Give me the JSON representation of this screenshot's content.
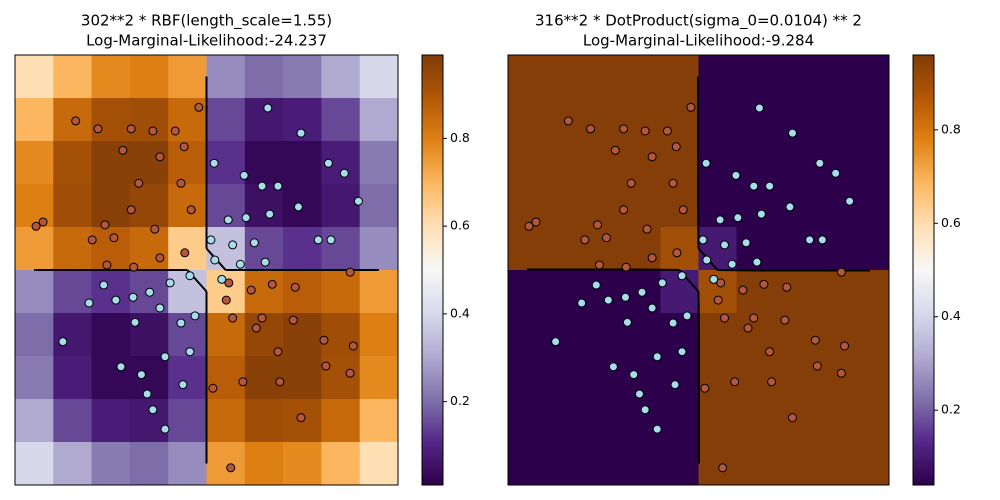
{
  "chart_data": [
    {
      "type": "heatmap",
      "title": "302**2 * RBF(length_scale=1.55)",
      "subtitle": "Log-Marginal-Likelihood:-24.237",
      "xlim": [
        -3,
        3
      ],
      "ylim": [
        -3,
        3
      ],
      "z": [
        [
          0.6,
          0.7,
          0.78,
          0.8,
          0.75,
          0.25,
          0.2,
          0.22,
          0.3,
          0.4
        ],
        [
          0.7,
          0.85,
          0.92,
          0.93,
          0.85,
          0.15,
          0.07,
          0.08,
          0.15,
          0.3
        ],
        [
          0.78,
          0.92,
          0.97,
          0.97,
          0.88,
          0.12,
          0.03,
          0.03,
          0.08,
          0.22
        ],
        [
          0.8,
          0.93,
          0.97,
          0.95,
          0.85,
          0.15,
          0.05,
          0.03,
          0.07,
          0.2
        ],
        [
          0.75,
          0.85,
          0.88,
          0.85,
          0.65,
          0.35,
          0.15,
          0.12,
          0.15,
          0.25
        ],
        [
          0.25,
          0.15,
          0.12,
          0.15,
          0.35,
          0.65,
          0.85,
          0.88,
          0.85,
          0.75
        ],
        [
          0.2,
          0.07,
          0.03,
          0.05,
          0.15,
          0.85,
          0.95,
          0.97,
          0.93,
          0.8
        ],
        [
          0.22,
          0.08,
          0.03,
          0.03,
          0.12,
          0.88,
          0.97,
          0.97,
          0.92,
          0.78
        ],
        [
          0.3,
          0.15,
          0.08,
          0.07,
          0.15,
          0.85,
          0.93,
          0.92,
          0.85,
          0.7
        ],
        [
          0.4,
          0.3,
          0.22,
          0.2,
          0.25,
          0.75,
          0.8,
          0.78,
          0.7,
          0.6
        ]
      ],
      "colormap": [
        "#2d004b",
        "#542788",
        "#8073ac",
        "#b2abd2",
        "#d8daeb",
        "#f7f7f7",
        "#fee0b6",
        "#fdb863",
        "#e08214",
        "#b35806",
        "#7f3b08"
      ],
      "clim": [
        0.01,
        0.99
      ],
      "colorbar_ticks": [
        0.2,
        0.4,
        0.6,
        0.8
      ],
      "contour_level": 0.5,
      "series": [
        {
          "color": "#b5573a",
          "x": [
            -2.05,
            -1.7,
            -1.18,
            -0.84,
            -0.49,
            -1.31,
            -0.73,
            -0.35,
            -0.12,
            -1.06,
            -0.4,
            -1.18,
            -1.59,
            -2.67,
            -2.56,
            -1.79,
            -0.81,
            -0.24,
            -1.56,
            -1.14,
            -0.73,
            -0.34,
            -1.45,
            0.35,
            0.7,
            1.03,
            1.39,
            2.25,
            0.41,
            0.87,
            1.36,
            1.84,
            2.3,
            1.12,
            0.57,
            1.15,
            1.87,
            2.25,
            1.48,
            0.38,
            0.1,
            0.31,
            0.78
          ],
          "y": [
            2.08,
            1.97,
            1.97,
            1.94,
            1.94,
            1.67,
            1.58,
            1.72,
            2.27,
            1.21,
            1.21,
            0.84,
            0.63,
            0.61,
            0.67,
            0.42,
            0.57,
            0.84,
            0.07,
            0.04,
            0.17,
            0.24,
            0.45,
            -0.18,
            -0.28,
            -0.2,
            -0.24,
            -0.03,
            -0.67,
            -0.67,
            -0.7,
            -0.98,
            -1.06,
            -1.14,
            -1.56,
            -1.56,
            -1.34,
            -1.44,
            -2.06,
            -2.76,
            -1.65,
            -0.42,
            -0.81
          ]
        },
        {
          "color": "#a6dceb",
          "x": [
            0.96,
            1.48,
            1.91,
            2.16,
            2.38,
            0.12,
            0.59,
            0.87,
            1.12,
            1.44,
            0.34,
            0.62,
            0.99,
            1.75,
            1.95,
            0.07,
            0.41,
            0.75,
            0.92,
            0.53,
            0.13,
            0.24,
            -1.61,
            -1.84,
            -2.25,
            -1.42,
            -1.15,
            -0.89,
            -0.57,
            -0.26,
            -0.73,
            -0.4,
            -1.12,
            -1.34,
            -1.02,
            -0.65,
            -0.26,
            -0.37,
            -0.93,
            -0.84,
            -0.65,
            -0.18
          ],
          "y": [
            2.26,
            1.91,
            1.49,
            1.35,
            0.96,
            1.49,
            1.32,
            1.17,
            1.17,
            0.88,
            0.7,
            0.73,
            0.78,
            0.42,
            0.42,
            0.42,
            0.35,
            0.38,
            0.11,
            0.08,
            0.14,
            -0.13,
            -0.21,
            -0.46,
            -1.0,
            -0.42,
            -0.38,
            -0.31,
            -0.18,
            -0.08,
            -0.53,
            -0.74,
            -0.73,
            -1.35,
            -1.46,
            -1.21,
            -1.14,
            -1.6,
            -1.73,
            -1.95,
            -2.22,
            -0.64
          ]
        }
      ]
    },
    {
      "type": "heatmap",
      "title": "316**2 * DotProduct(sigma_0=0.0104) ** 2",
      "subtitle": "Log-Marginal-Likelihood:-9.284",
      "xlim": [
        -3,
        3
      ],
      "ylim": [
        -3,
        3
      ],
      "z": [
        [
          0.95,
          0.95,
          0.95,
          0.95,
          0.95,
          0.03,
          0.03,
          0.03,
          0.03,
          0.03
        ],
        [
          0.95,
          0.95,
          0.95,
          0.95,
          0.95,
          0.03,
          0.03,
          0.03,
          0.03,
          0.03
        ],
        [
          0.95,
          0.95,
          0.95,
          0.95,
          0.95,
          0.03,
          0.03,
          0.03,
          0.03,
          0.03
        ],
        [
          0.95,
          0.95,
          0.95,
          0.95,
          0.95,
          0.03,
          0.03,
          0.03,
          0.03,
          0.03
        ],
        [
          0.95,
          0.95,
          0.95,
          0.95,
          0.9,
          0.1,
          0.03,
          0.03,
          0.03,
          0.03
        ],
        [
          0.03,
          0.03,
          0.03,
          0.03,
          0.1,
          0.9,
          0.95,
          0.95,
          0.95,
          0.95
        ],
        [
          0.03,
          0.03,
          0.03,
          0.03,
          0.03,
          0.95,
          0.95,
          0.95,
          0.95,
          0.95
        ],
        [
          0.03,
          0.03,
          0.03,
          0.03,
          0.03,
          0.95,
          0.95,
          0.95,
          0.95,
          0.95
        ],
        [
          0.03,
          0.03,
          0.03,
          0.03,
          0.03,
          0.95,
          0.95,
          0.95,
          0.95,
          0.95
        ],
        [
          0.03,
          0.03,
          0.03,
          0.03,
          0.03,
          0.95,
          0.95,
          0.95,
          0.95,
          0.95
        ]
      ],
      "colormap": [
        "#2d004b",
        "#542788",
        "#8073ac",
        "#b2abd2",
        "#d8daeb",
        "#f7f7f7",
        "#fee0b6",
        "#fdb863",
        "#e08214",
        "#b35806",
        "#7f3b08"
      ],
      "clim": [
        0.04,
        0.96
      ],
      "colorbar_ticks": [
        0.2,
        0.4,
        0.6,
        0.8
      ],
      "contour_level": 0.5,
      "series": [
        {
          "color": "#b5573a",
          "x": [
            -2.05,
            -1.7,
            -1.18,
            -0.84,
            -0.49,
            -1.31,
            -0.73,
            -0.35,
            -0.12,
            -1.06,
            -0.4,
            -1.18,
            -1.59,
            -2.67,
            -2.56,
            -1.79,
            -0.81,
            -0.24,
            -1.56,
            -1.14,
            -0.73,
            -0.34,
            -1.45,
            0.35,
            0.7,
            1.03,
            1.39,
            2.25,
            0.41,
            0.87,
            1.36,
            1.84,
            2.3,
            1.12,
            0.57,
            1.15,
            1.87,
            2.25,
            1.48,
            0.38,
            0.1,
            0.31,
            0.78
          ],
          "y": [
            2.08,
            1.97,
            1.97,
            1.94,
            1.94,
            1.67,
            1.58,
            1.72,
            2.27,
            1.21,
            1.21,
            0.84,
            0.63,
            0.61,
            0.67,
            0.42,
            0.57,
            0.84,
            0.07,
            0.04,
            0.17,
            0.24,
            0.45,
            -0.18,
            -0.28,
            -0.2,
            -0.24,
            -0.03,
            -0.67,
            -0.67,
            -0.7,
            -0.98,
            -1.06,
            -1.14,
            -1.56,
            -1.56,
            -1.34,
            -1.44,
            -2.06,
            -2.76,
            -1.65,
            -0.42,
            -0.81
          ]
        },
        {
          "color": "#a6dceb",
          "x": [
            0.96,
            1.48,
            1.91,
            2.16,
            2.38,
            0.12,
            0.59,
            0.87,
            1.12,
            1.44,
            0.34,
            0.62,
            0.99,
            1.75,
            1.95,
            0.07,
            0.41,
            0.75,
            0.92,
            0.53,
            0.13,
            0.24,
            -1.61,
            -1.84,
            -2.25,
            -1.42,
            -1.15,
            -0.89,
            -0.57,
            -0.26,
            -0.73,
            -0.4,
            -1.12,
            -1.34,
            -1.02,
            -0.65,
            -0.26,
            -0.37,
            -0.93,
            -0.84,
            -0.65,
            -0.18
          ],
          "y": [
            2.26,
            1.91,
            1.49,
            1.35,
            0.96,
            1.49,
            1.32,
            1.17,
            1.17,
            0.88,
            0.7,
            0.73,
            0.78,
            0.42,
            0.42,
            0.42,
            0.35,
            0.38,
            0.11,
            0.08,
            0.14,
            -0.13,
            -0.21,
            -0.46,
            -1.0,
            -0.42,
            -0.38,
            -0.31,
            -0.18,
            -0.08,
            -0.53,
            -0.74,
            -0.73,
            -1.35,
            -1.46,
            -1.21,
            -1.14,
            -1.6,
            -1.73,
            -1.95,
            -2.22,
            -0.64
          ]
        }
      ]
    }
  ]
}
